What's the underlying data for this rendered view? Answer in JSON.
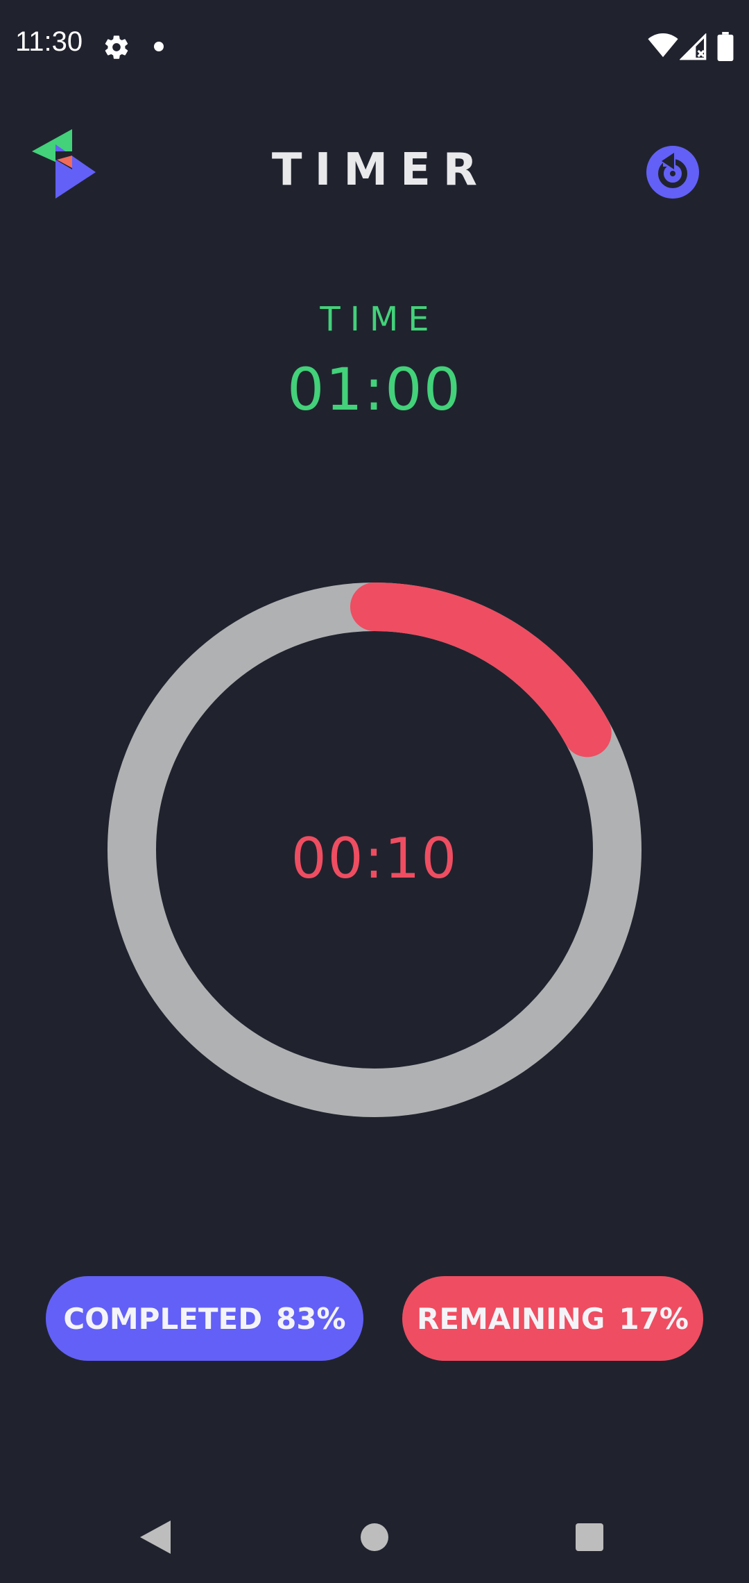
{
  "status_bar": {
    "time": "11:30",
    "icons": [
      "gear-icon",
      "notification-dot-icon",
      "wifi-icon",
      "signal-icon",
      "battery-icon"
    ]
  },
  "header": {
    "title": "TIMER",
    "logo_icon": "triangles-logo-icon",
    "reset_icon": "reset-icon"
  },
  "timer": {
    "label": "TIME",
    "total": "01:00",
    "countdown": "00:10",
    "progress_remaining": 0.17
  },
  "stats": {
    "completed_label": "COMPLETED",
    "completed_value": "83%",
    "remaining_label": "REMAINING",
    "remaining_value": "17%"
  },
  "colors": {
    "background": "#20232e",
    "accent_green": "#43d17a",
    "accent_red": "#ef4d61",
    "accent_blue": "#6360f7",
    "ring_track": "#b0b1b3",
    "title_text": "#e9e9ec"
  },
  "nav_bar": {
    "icons": [
      "back-icon",
      "home-icon",
      "recents-icon"
    ]
  }
}
